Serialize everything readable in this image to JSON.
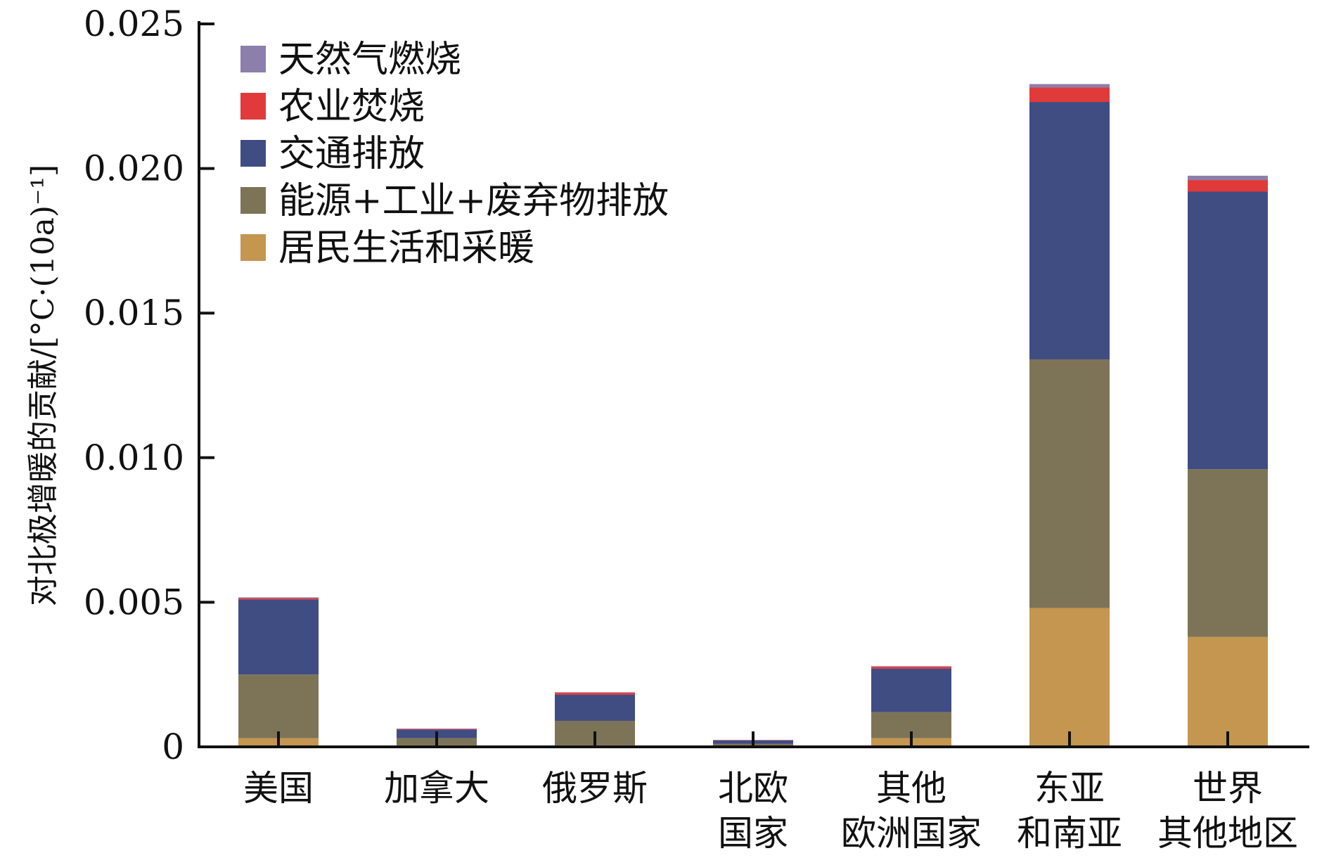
{
  "chart_data": {
    "type": "bar",
    "stacked": true,
    "ylabel": "对北极增暖的贡献/[°C·(10a)⁻¹]",
    "ylim": [
      0,
      0.025
    ],
    "yticks": [
      "0",
      "0.005",
      "0.010",
      "0.015",
      "0.020",
      "0.025"
    ],
    "ytick_values": [
      0,
      0.005,
      0.01,
      0.015,
      0.02,
      0.025
    ],
    "categories": [
      [
        "美国"
      ],
      [
        "加拿大"
      ],
      [
        "俄罗斯"
      ],
      [
        "北欧",
        "国家"
      ],
      [
        "其他",
        "欧洲国家"
      ],
      [
        "东亚",
        "和南亚"
      ],
      [
        "世界",
        "其他地区"
      ]
    ],
    "series": [
      {
        "name": "居民生活和采暖",
        "color": "#c4964f",
        "values": [
          0.0003,
          5e-05,
          5e-05,
          3e-05,
          0.0003,
          0.0048,
          0.0038
        ]
      },
      {
        "name": "能源+工业+废弃物排放",
        "color": "#7d7457",
        "values": [
          0.0022,
          0.00025,
          0.00085,
          7e-05,
          0.0009,
          0.0086,
          0.0058
        ]
      },
      {
        "name": "交通排放",
        "color": "#404d83",
        "values": [
          0.0026,
          0.0003,
          0.0009,
          0.00012,
          0.0015,
          0.0089,
          0.0096
        ]
      },
      {
        "name": "农业焚烧",
        "color": "#e03a3a",
        "values": [
          5e-05,
          2e-05,
          7e-05,
          1e-05,
          7e-05,
          0.0005,
          0.0004
        ]
      },
      {
        "name": "天然气燃烧",
        "color": "#8c7fac",
        "values": [
          2e-05,
          1e-05,
          2e-05,
          1e-05,
          2e-05,
          0.00012,
          0.00015
        ]
      }
    ],
    "legend_order": [
      4,
      3,
      2,
      1,
      0
    ],
    "legend_position": "top-left",
    "grid": false
  }
}
